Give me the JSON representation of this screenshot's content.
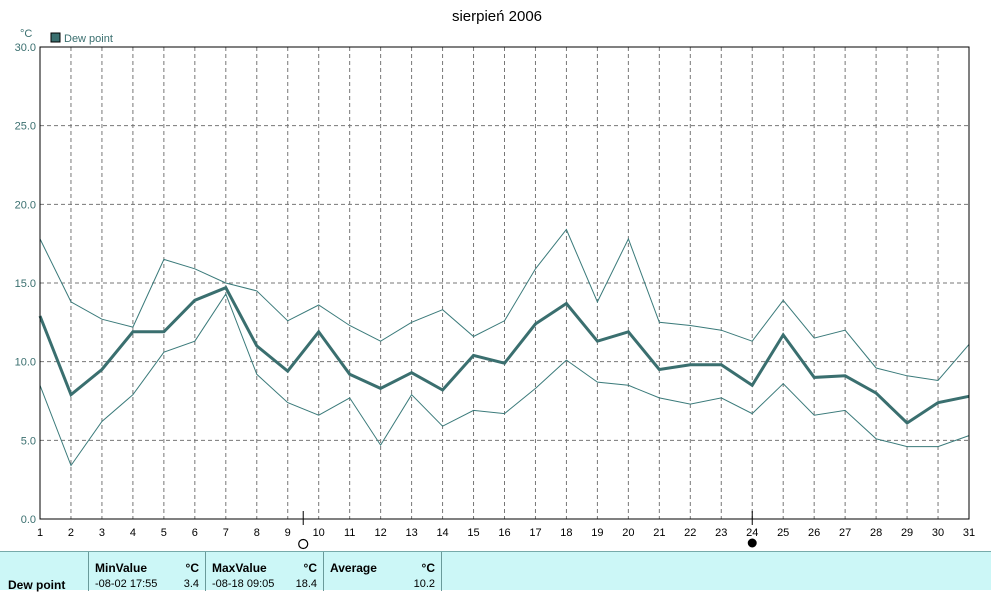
{
  "chart_data": {
    "type": "line",
    "title": "sierpień 2006",
    "ylabel": "°C",
    "ylim": [
      0,
      30
    ],
    "yticks": [
      "0.0",
      "5.0",
      "10.0",
      "15.0",
      "20.0",
      "25.0",
      "30.0"
    ],
    "x": [
      1,
      2,
      3,
      4,
      5,
      6,
      7,
      8,
      9,
      10,
      11,
      12,
      13,
      14,
      15,
      16,
      17,
      18,
      19,
      20,
      21,
      22,
      23,
      24,
      25,
      26,
      27,
      28,
      29,
      30,
      31
    ],
    "legend": "Dew point",
    "grid": true,
    "series": [
      {
        "name": "Dew point",
        "role": "average",
        "values": [
          12.9,
          7.9,
          9.5,
          11.9,
          11.9,
          13.9,
          14.7,
          11.0,
          9.4,
          11.9,
          9.2,
          8.3,
          9.3,
          8.2,
          10.4,
          9.9,
          12.4,
          13.7,
          11.3,
          11.9,
          9.5,
          9.8,
          9.8,
          8.5,
          11.7,
          9.0,
          9.1,
          8.0,
          6.1,
          7.4,
          7.8
        ]
      },
      {
        "role": "max",
        "values": [
          17.8,
          13.8,
          12.7,
          12.2,
          16.5,
          15.9,
          15.0,
          14.5,
          12.6,
          13.6,
          12.3,
          11.3,
          12.5,
          13.3,
          11.6,
          12.6,
          15.9,
          18.4,
          13.8,
          17.8,
          12.5,
          12.3,
          12.0,
          11.3,
          13.9,
          11.5,
          12.0,
          9.6,
          9.1,
          8.8,
          11.1
        ]
      },
      {
        "role": "min",
        "values": [
          8.5,
          3.4,
          6.2,
          7.9,
          10.6,
          11.3,
          14.3,
          9.2,
          7.4,
          6.6,
          7.7,
          4.7,
          7.9,
          5.9,
          6.9,
          6.7,
          8.3,
          10.1,
          8.7,
          8.5,
          7.7,
          7.3,
          7.7,
          6.7,
          8.6,
          6.6,
          6.9,
          5.1,
          4.6,
          4.6,
          5.3
        ]
      }
    ]
  },
  "moon_markers": {
    "new_moon_day": 9.5,
    "full_moon_day": 24
  },
  "stats": {
    "row_label": "Dew point",
    "min": {
      "header": "MinValue",
      "unit": "°C",
      "when": "-08-02  17:55",
      "value": "3.4"
    },
    "max": {
      "header": "MaxValue",
      "unit": "°C",
      "when": "-08-18  09:05",
      "value": "18.4"
    },
    "avg": {
      "header": "Average",
      "unit": "°C",
      "value": "10.2"
    }
  },
  "colors": {
    "main": "#3a6f6f",
    "thin": "#3a7a7a",
    "grid": "#777777",
    "panel": "#ccf7f7"
  }
}
